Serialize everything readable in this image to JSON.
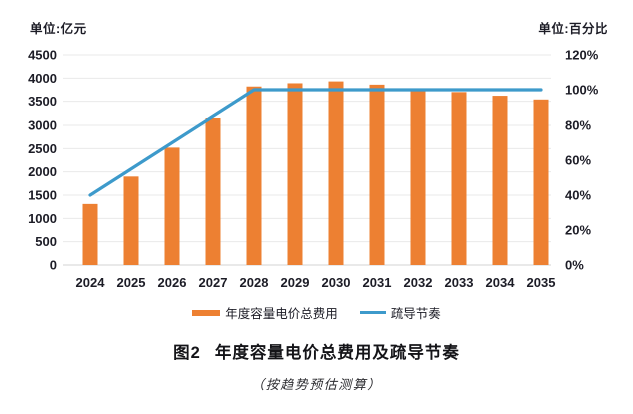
{
  "figure": {
    "left_unit": "单位:亿元",
    "right_unit": "单位:百分比",
    "title_prefix": "图2",
    "title": "年度容量电价总费用及疏导节奏",
    "caption": "（按趋势预估测算）"
  },
  "legend": [
    {
      "label": "年度容量电价总费用",
      "color": "#ED8032",
      "type": "bar"
    },
    {
      "label": "疏导节奏",
      "color": "#3D9ACB",
      "type": "line"
    }
  ],
  "chart_data": {
    "type": "bar",
    "subtype": "combo-bar-line",
    "title": "图2 年度容量电价总费用及疏导节奏",
    "subtitle": "（按趋势预估测算）",
    "categories": [
      "2024",
      "2025",
      "2026",
      "2027",
      "2028",
      "2029",
      "2030",
      "2031",
      "2032",
      "2033",
      "2034",
      "2035"
    ],
    "series": [
      {
        "name": "年度容量电价总费用",
        "type": "bar",
        "axis": "left",
        "color": "#ED8032",
        "values": [
          1310,
          1900,
          2520,
          3150,
          3820,
          3890,
          3930,
          3860,
          3780,
          3700,
          3620,
          3540
        ]
      },
      {
        "name": "疏导节奏",
        "type": "line",
        "axis": "right",
        "color": "#3D9ACB",
        "values": [
          40,
          55,
          70,
          85,
          100,
          100,
          100,
          100,
          100,
          100,
          100,
          100
        ]
      }
    ],
    "left_axis": {
      "label": "单位:亿元",
      "min": 0,
      "max": 4500,
      "tick_step": 500,
      "ticks": [
        "0",
        "500",
        "1000",
        "1500",
        "2000",
        "2500",
        "3000",
        "3500",
        "4000",
        "4500"
      ]
    },
    "right_axis": {
      "label": "单位:百分比",
      "min": 0,
      "max": 120,
      "tick_step": 20,
      "ticks": [
        "0%",
        "20%",
        "40%",
        "60%",
        "80%",
        "100%",
        "120%"
      ]
    },
    "grid": true,
    "legend_position": "bottom",
    "grid_color": "#e9e9e9",
    "axis_line_color": "#d3d3d3"
  }
}
